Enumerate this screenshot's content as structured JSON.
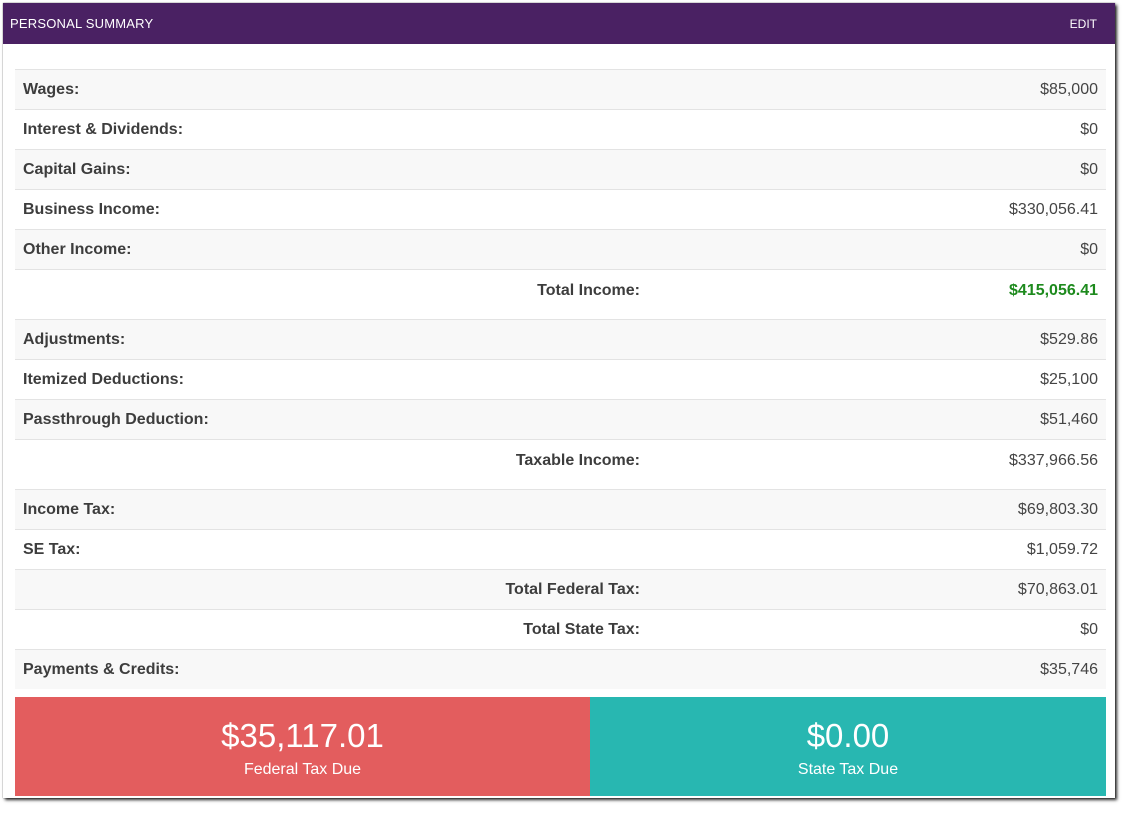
{
  "header": {
    "title": "PERSONAL SUMMARY",
    "edit_label": "EDIT"
  },
  "rows": [
    {
      "label": "Wages:",
      "value": "$85,000"
    },
    {
      "label": "Interest & Dividends:",
      "value": "$0"
    },
    {
      "label": "Capital Gains:",
      "value": "$0"
    },
    {
      "label": "Business Income:",
      "value": "$330,056.41"
    },
    {
      "label": "Other Income:",
      "value": "$0"
    },
    {
      "label": "Total Income:",
      "value": "$415,056.41"
    },
    {
      "label": "Adjustments:",
      "value": "$529.86"
    },
    {
      "label": "Itemized Deductions:",
      "value": "$25,100"
    },
    {
      "label": "Passthrough Deduction:",
      "value": "$51,460"
    },
    {
      "label": "Taxable Income:",
      "value": "$337,966.56"
    },
    {
      "label": "Income Tax:",
      "value": "$69,803.30"
    },
    {
      "label": "SE Tax:",
      "value": "$1,059.72"
    },
    {
      "label": "Total Federal Tax:",
      "value": "$70,863.01"
    },
    {
      "label": "Total State Tax:",
      "value": "$0"
    },
    {
      "label": "Payments & Credits:",
      "value": "$35,746"
    }
  ],
  "tiles": {
    "federal": {
      "amount": "$35,117.01",
      "label": "Federal Tax Due"
    },
    "state": {
      "amount": "$0.00",
      "label": "State Tax Due"
    }
  },
  "colors": {
    "header_bg": "#4a2163",
    "total_income_value": "#1d8a1d",
    "federal_tile": "#e35d5e",
    "state_tile": "#28b7b1"
  }
}
